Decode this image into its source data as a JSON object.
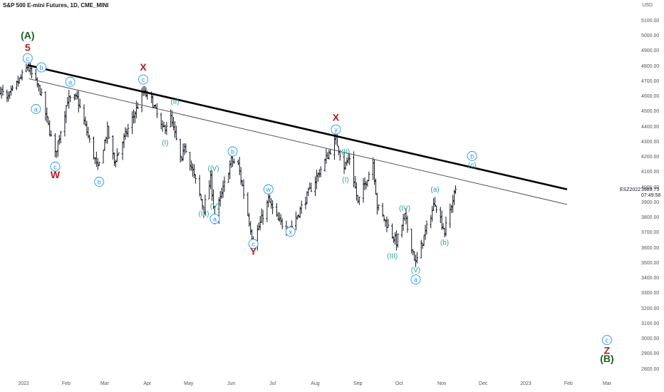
{
  "header": {
    "title": "S&P 500 E-mini Futures, 1D, CME_MINI",
    "currency": "USD"
  },
  "price_tag": {
    "symbol": "ESZ2022",
    "price": "3989.75",
    "countdown": "07:49:58"
  },
  "colors": {
    "bars": "#131722",
    "trend_thick": "#000000",
    "trend_thin": "#555555",
    "teal": "#26a69a",
    "blue": "#2196f3",
    "red": "#b71c1c",
    "green": "#1b5e20"
  },
  "chart_data": {
    "type": "ohlc",
    "yticks": [
      2800,
      2900,
      3000,
      3100,
      3200,
      3300,
      3400,
      3500,
      3600,
      3700,
      3800,
      3900,
      4000,
      4100,
      4200,
      4300,
      4400,
      4500,
      4600,
      4700,
      4800,
      4900,
      5000,
      5100
    ],
    "ytick_labels": [
      "2800.00",
      "2900.00",
      "3000.00",
      "3100.00",
      "3200.00",
      "3300.00",
      "3400.00",
      "3500.00",
      "3600.00",
      "3700.00",
      "3800.00",
      "3900.00",
      "4000.00",
      "4100.00",
      "4200.00",
      "4300.00",
      "4400.00",
      "4500.00",
      "4600.00",
      "4700.00",
      "4800.00",
      "4900.00",
      "5000.00",
      "5100.00"
    ],
    "xticks": [
      {
        "label": "2022",
        "date": "2022-01-01"
      },
      {
        "label": "Feb",
        "date": "2022-02-01"
      },
      {
        "label": "Mar",
        "date": "2022-03-01"
      },
      {
        "label": "Apr",
        "date": "2022-04-01"
      },
      {
        "label": "May",
        "date": "2022-05-01"
      },
      {
        "label": "Jun",
        "date": "2022-06-01"
      },
      {
        "label": "Jul",
        "date": "2022-07-01"
      },
      {
        "label": "Aug",
        "date": "2022-08-01"
      },
      {
        "label": "Sep",
        "date": "2022-09-01"
      },
      {
        "label": "Oct",
        "date": "2022-10-01"
      },
      {
        "label": "Nov",
        "date": "2022-11-01"
      },
      {
        "label": "Dec",
        "date": "2022-12-01"
      },
      {
        "label": "2023",
        "date": "2023-01-01"
      },
      {
        "label": "Feb",
        "date": "2023-02-01"
      },
      {
        "label": "Mar",
        "date": "2023-03-01"
      }
    ],
    "price_path": [
      [
        "2021-12-15",
        4650
      ],
      [
        "2021-12-20",
        4580
      ],
      [
        "2022-01-04",
        4800
      ],
      [
        "2022-01-13",
        4640
      ],
      [
        "2022-01-24",
        4220
      ],
      [
        "2022-02-02",
        4580
      ],
      [
        "2022-02-09",
        4590
      ],
      [
        "2022-02-24",
        4120
      ],
      [
        "2022-03-03",
        4380
      ],
      [
        "2022-03-08",
        4170
      ],
      [
        "2022-03-29",
        4630
      ],
      [
        "2022-04-04",
        4580
      ],
      [
        "2022-04-12",
        4380
      ],
      [
        "2022-04-18",
        4460
      ],
      [
        "2022-04-26",
        4160
      ],
      [
        "2022-04-28",
        4290
      ],
      [
        "2022-05-12",
        3860
      ],
      [
        "2022-05-17",
        4060
      ],
      [
        "2022-05-20",
        3800
      ],
      [
        "2022-06-01",
        4180
      ],
      [
        "2022-06-06",
        4150
      ],
      [
        "2022-06-17",
        3640
      ],
      [
        "2022-06-28",
        3920
      ],
      [
        "2022-07-05",
        3780
      ],
      [
        "2022-07-14",
        3730
      ],
      [
        "2022-08-16",
        4320
      ],
      [
        "2022-08-22",
        4140
      ],
      [
        "2022-08-26",
        4200
      ],
      [
        "2022-09-01",
        3900
      ],
      [
        "2022-09-12",
        4170
      ],
      [
        "2022-09-15",
        3880
      ],
      [
        "2022-09-29",
        3640
      ],
      [
        "2022-10-05",
        3810
      ],
      [
        "2022-10-13",
        3500
      ],
      [
        "2022-10-27",
        3910
      ],
      [
        "2022-11-03",
        3710
      ],
      [
        "2022-11-11",
        3990
      ]
    ],
    "last_close": 3989.75,
    "trendlines": [
      {
        "style": "thick",
        "from": [
          "2022-01-04",
          4810
        ],
        "to": [
          "2023-01-31",
          3990
        ]
      },
      {
        "style": "thin",
        "from": [
          "2022-01-05",
          4720
        ],
        "to": [
          "2023-01-31",
          3890
        ]
      }
    ],
    "wave_labels": [
      {
        "text": "(A)",
        "date": "2022-01-04",
        "price": 5000,
        "color": "green",
        "circle": false
      },
      {
        "text": "5",
        "date": "2022-01-04",
        "price": 4920,
        "color": "red",
        "circle": false
      },
      {
        "text": "c",
        "date": "2022-01-04",
        "price": 4855,
        "color": "blue",
        "circle": true
      },
      {
        "text": "b",
        "date": "2022-01-14",
        "price": 4795,
        "color": "blue",
        "circle": true
      },
      {
        "text": "a",
        "date": "2022-01-10",
        "price": 4520,
        "color": "blue",
        "circle": true
      },
      {
        "text": "a",
        "date": "2022-02-04",
        "price": 4700,
        "color": "blue",
        "circle": true
      },
      {
        "text": "c",
        "date": "2022-01-24",
        "price": 4140,
        "color": "blue",
        "circle": true
      },
      {
        "text": "W",
        "date": "2022-01-24",
        "price": 4080,
        "color": "red",
        "circle": false
      },
      {
        "text": "b",
        "date": "2022-02-25",
        "price": 4040,
        "color": "blue",
        "circle": true
      },
      {
        "text": "X",
        "date": "2022-03-29",
        "price": 4790,
        "color": "red",
        "circle": false
      },
      {
        "text": "c",
        "date": "2022-03-29",
        "price": 4715,
        "color": "blue",
        "circle": true
      },
      {
        "text": "(I)",
        "date": "2022-04-14",
        "price": 4300,
        "color": "teal",
        "circle": false
      },
      {
        "text": "(II)",
        "date": "2022-04-21",
        "price": 4570,
        "color": "teal",
        "circle": false
      },
      {
        "text": "(III)",
        "date": "2022-05-12",
        "price": 3830,
        "color": "teal",
        "circle": false
      },
      {
        "text": "(IV)",
        "date": "2022-05-19",
        "price": 4130,
        "color": "teal",
        "circle": false
      },
      {
        "text": "(V)",
        "date": "2022-05-20",
        "price": 3880,
        "color": "teal",
        "circle": false
      },
      {
        "text": "a",
        "date": "2022-05-20",
        "price": 3795,
        "color": "blue",
        "circle": true
      },
      {
        "text": "b",
        "date": "2022-06-02",
        "price": 4240,
        "color": "blue",
        "circle": true
      },
      {
        "text": "c",
        "date": "2022-06-17",
        "price": 3630,
        "color": "blue",
        "circle": true
      },
      {
        "text": "Y",
        "date": "2022-06-17",
        "price": 3575,
        "color": "red",
        "circle": false
      },
      {
        "text": "w",
        "date": "2022-06-28",
        "price": 3990,
        "color": "blue",
        "circle": true
      },
      {
        "text": "x",
        "date": "2022-07-14",
        "price": 3710,
        "color": "blue",
        "circle": true
      },
      {
        "text": "X",
        "date": "2022-08-16",
        "price": 4460,
        "color": "red",
        "circle": false
      },
      {
        "text": "y",
        "date": "2022-08-16",
        "price": 4385,
        "color": "blue",
        "circle": true
      },
      {
        "text": "(II)",
        "date": "2022-08-23",
        "price": 4240,
        "color": "teal",
        "circle": false
      },
      {
        "text": "(I)",
        "date": "2022-08-23",
        "price": 4055,
        "color": "teal",
        "circle": false
      },
      {
        "text": "(III)",
        "date": "2022-09-26",
        "price": 3550,
        "color": "teal",
        "circle": false
      },
      {
        "text": "(IV)",
        "date": "2022-10-05",
        "price": 3865,
        "color": "teal",
        "circle": false
      },
      {
        "text": "(V)",
        "date": "2022-10-13",
        "price": 3460,
        "color": "teal",
        "circle": false
      },
      {
        "text": "a",
        "date": "2022-10-13",
        "price": 3395,
        "color": "blue",
        "circle": true
      },
      {
        "text": "(a)",
        "date": "2022-10-27",
        "price": 3990,
        "color": "teal",
        "circle": false
      },
      {
        "text": "(b)",
        "date": "2022-11-03",
        "price": 3640,
        "color": "teal",
        "circle": false
      },
      {
        "text": "b",
        "date": "2022-11-23",
        "price": 4210,
        "color": "blue",
        "circle": true
      },
      {
        "text": "(c)",
        "date": "2022-11-23",
        "price": 4150,
        "color": "teal",
        "circle": false
      },
      {
        "text": "c",
        "date": "2023-03-01",
        "price": 2995,
        "color": "blue",
        "circle": true
      },
      {
        "text": "Z",
        "date": "2023-03-01",
        "price": 2920,
        "color": "red",
        "circle": false
      },
      {
        "text": "(B)",
        "date": "2023-03-01",
        "price": 2865,
        "color": "green",
        "circle": false
      }
    ]
  }
}
